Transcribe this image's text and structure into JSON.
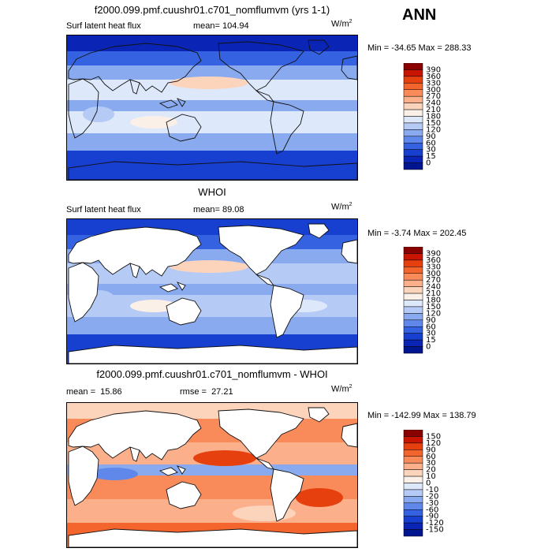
{
  "season": "ANN",
  "panels": [
    {
      "title": "f2000.099.pmf.cuushr01.c701_nomflumvm (yrs 1-1)",
      "left_label": "Surf latent heat flux",
      "mean_label": "mean=",
      "mean_value": "104.94",
      "units": "W/m",
      "units_sup": "2",
      "min_label": "Min =",
      "min_value": "-34.65",
      "max_label": "Max =",
      "max_value": "288.33",
      "land_masked": false,
      "colorbar": {
        "levels": [
          "390",
          "360",
          "330",
          "300",
          "270",
          "240",
          "210",
          "180",
          "150",
          "120",
          "90",
          "60",
          "30",
          "15",
          "0"
        ],
        "colors": [
          "#8b0000",
          "#c81400",
          "#e6400f",
          "#f4642d",
          "#f98a5a",
          "#fbb08b",
          "#fcd4bc",
          "#fbf0e8",
          "#dde8fa",
          "#b5cbf5",
          "#8aaaf0",
          "#5f88ea",
          "#3562e0",
          "#173fd0",
          "#0a25b6",
          "#001590"
        ]
      }
    },
    {
      "title": "WHOI",
      "left_label": "Surf latent heat flux",
      "mean_label": "mean=",
      "mean_value": "89.08",
      "units": "W/m",
      "units_sup": "2",
      "min_label": "Min =",
      "min_value": "-3.74",
      "max_label": "Max =",
      "max_value": "202.45",
      "land_masked": true,
      "colorbar": {
        "levels": [
          "390",
          "360",
          "330",
          "300",
          "270",
          "240",
          "210",
          "180",
          "150",
          "120",
          "90",
          "60",
          "30",
          "15",
          "0"
        ],
        "colors": [
          "#8b0000",
          "#c81400",
          "#e6400f",
          "#f4642d",
          "#f98a5a",
          "#fbb08b",
          "#fcd4bc",
          "#fbf0e8",
          "#dde8fa",
          "#b5cbf5",
          "#8aaaf0",
          "#5f88ea",
          "#3562e0",
          "#173fd0",
          "#0a25b6",
          "#001590"
        ]
      }
    },
    {
      "title": "f2000.099.pmf.cuushr01.c701_nomflumvm - WHOI",
      "left_label": "mean =",
      "mean_label": "",
      "mean_value": "15.86",
      "rmse_label": "rmse =",
      "rmse_value": "27.21",
      "units": "W/m",
      "units_sup": "2",
      "min_label": "Min =",
      "min_value": "-142.99",
      "max_label": "Max =",
      "max_value": "138.79",
      "land_masked": true,
      "colorbar": {
        "levels": [
          "150",
          "120",
          "90",
          "60",
          "30",
          "20",
          "10",
          "0",
          "-10",
          "-20",
          "-30",
          "-60",
          "-90",
          "-120",
          "-150"
        ],
        "colors": [
          "#8b0000",
          "#c81400",
          "#e6400f",
          "#f4642d",
          "#f98a5a",
          "#fbb08b",
          "#fcd4bc",
          "#fbf0e8",
          "#dde8fa",
          "#b5cbf5",
          "#8aaaf0",
          "#5f88ea",
          "#3562e0",
          "#173fd0",
          "#0a25b6",
          "#001590"
        ]
      }
    }
  ],
  "chart_data": [
    {
      "type": "heatmap",
      "title": "f2000.099.pmf.cuushr01.c701_nomflumvm (yrs 1-1)",
      "variable": "Surf latent heat flux",
      "units": "W/m2",
      "mean": 104.94,
      "min": -34.65,
      "max": 288.33,
      "colorbar_levels": [
        0,
        15,
        30,
        60,
        90,
        120,
        150,
        180,
        210,
        240,
        270,
        300,
        330,
        360,
        390
      ]
    },
    {
      "type": "heatmap",
      "title": "WHOI",
      "variable": "Surf latent heat flux",
      "units": "W/m2",
      "mean": 89.08,
      "min": -3.74,
      "max": 202.45,
      "colorbar_levels": [
        0,
        15,
        30,
        60,
        90,
        120,
        150,
        180,
        210,
        240,
        270,
        300,
        330,
        360,
        390
      ]
    },
    {
      "type": "heatmap",
      "title": "f2000.099.pmf.cuushr01.c701_nomflumvm - WHOI",
      "units": "W/m2",
      "mean": 15.86,
      "rmse": 27.21,
      "min": -142.99,
      "max": 138.79,
      "colorbar_levels": [
        -150,
        -120,
        -90,
        -60,
        -30,
        -20,
        -10,
        0,
        10,
        20,
        30,
        60,
        90,
        120,
        150
      ]
    }
  ]
}
